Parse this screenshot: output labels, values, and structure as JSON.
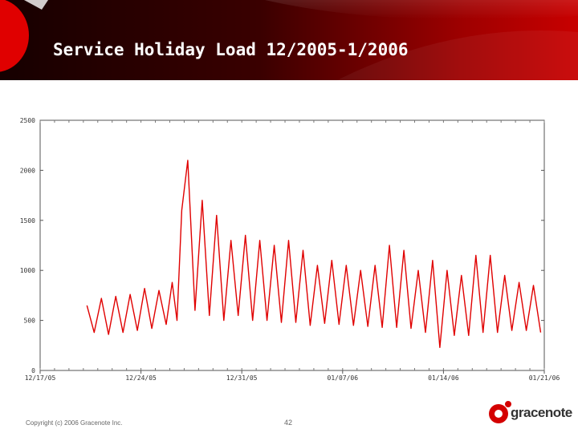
{
  "slide": {
    "title": "Service Holiday Load 12/2005-1/2006",
    "copyright": "Copyright (c) 2006 Gracenote Inc.",
    "page_number": "42",
    "logo_text": "gracenote"
  },
  "colors": {
    "header_dark": "#1a0000",
    "header_red": "#b30000",
    "series": "#e00000",
    "logo_red": "#d40000"
  },
  "chart_data": {
    "type": "line",
    "title": "",
    "xlabel": "",
    "ylabel": "",
    "ylim": [
      0,
      2500
    ],
    "yticks": [
      0,
      500,
      1000,
      1500,
      2000,
      2500
    ],
    "ytick_labels": [
      "0",
      "500",
      "1000",
      "1500",
      "2000",
      "2500"
    ],
    "xticks": [
      "12/17/05",
      "12/24/05",
      "12/31/05",
      "01/07/06",
      "01/14/06",
      "01/21/06"
    ],
    "xtick_labels": [
      "12/17/05",
      "12/24/05",
      "12/31/05",
      "01/07/06",
      "01/14/06",
      "01/21/06"
    ],
    "grid": false,
    "series": [
      {
        "values": [
          [
            "2005-12-20",
            650
          ],
          [
            "2005-12-20",
            380
          ],
          [
            "2005-12-21",
            720
          ],
          [
            "2005-12-21",
            360
          ],
          [
            "2005-12-22",
            740
          ],
          [
            "2005-12-22",
            380
          ],
          [
            "2005-12-23",
            760
          ],
          [
            "2005-12-23",
            400
          ],
          [
            "2005-12-24",
            820
          ],
          [
            "2005-12-24",
            420
          ],
          [
            "2005-12-25",
            800
          ],
          [
            "2005-12-25",
            460
          ],
          [
            "2005-12-26",
            880
          ],
          [
            "2005-12-26",
            500
          ],
          [
            "2005-12-26",
            1600
          ],
          [
            "2005-12-27",
            2100
          ],
          [
            "2005-12-27",
            600
          ],
          [
            "2005-12-28",
            1700
          ],
          [
            "2005-12-28",
            550
          ],
          [
            "2005-12-29",
            1550
          ],
          [
            "2005-12-29",
            500
          ],
          [
            "2005-12-30",
            1300
          ],
          [
            "2005-12-30",
            550
          ],
          [
            "2005-12-31",
            1350
          ],
          [
            "2005-12-31",
            500
          ],
          [
            "2006-01-01",
            1300
          ],
          [
            "2006-01-01",
            500
          ],
          [
            "2006-01-02",
            1250
          ],
          [
            "2006-01-02",
            480
          ],
          [
            "2006-01-03",
            1300
          ],
          [
            "2006-01-03",
            480
          ],
          [
            "2006-01-04",
            1200
          ],
          [
            "2006-01-04",
            450
          ],
          [
            "2006-01-05",
            1050
          ],
          [
            "2006-01-05",
            470
          ],
          [
            "2006-01-06",
            1100
          ],
          [
            "2006-01-06",
            460
          ],
          [
            "2006-01-07",
            1050
          ],
          [
            "2006-01-07",
            450
          ],
          [
            "2006-01-08",
            1000
          ],
          [
            "2006-01-08",
            440
          ],
          [
            "2006-01-09",
            1050
          ],
          [
            "2006-01-09",
            430
          ],
          [
            "2006-01-10",
            1250
          ],
          [
            "2006-01-10",
            430
          ],
          [
            "2006-01-11",
            1200
          ],
          [
            "2006-01-11",
            420
          ],
          [
            "2006-01-12",
            1000
          ],
          [
            "2006-01-12",
            380
          ],
          [
            "2006-01-13",
            1100
          ],
          [
            "2006-01-13",
            230
          ],
          [
            "2006-01-14",
            1000
          ],
          [
            "2006-01-14",
            350
          ],
          [
            "2006-01-15",
            950
          ],
          [
            "2006-01-15",
            350
          ],
          [
            "2006-01-16",
            1150
          ],
          [
            "2006-01-16",
            380
          ],
          [
            "2006-01-17",
            1150
          ],
          [
            "2006-01-17",
            380
          ],
          [
            "2006-01-18",
            950
          ],
          [
            "2006-01-18",
            400
          ],
          [
            "2006-01-19",
            880
          ],
          [
            "2006-01-19",
            400
          ],
          [
            "2006-01-20",
            850
          ],
          [
            "2006-01-20",
            380
          ]
        ]
      }
    ]
  }
}
